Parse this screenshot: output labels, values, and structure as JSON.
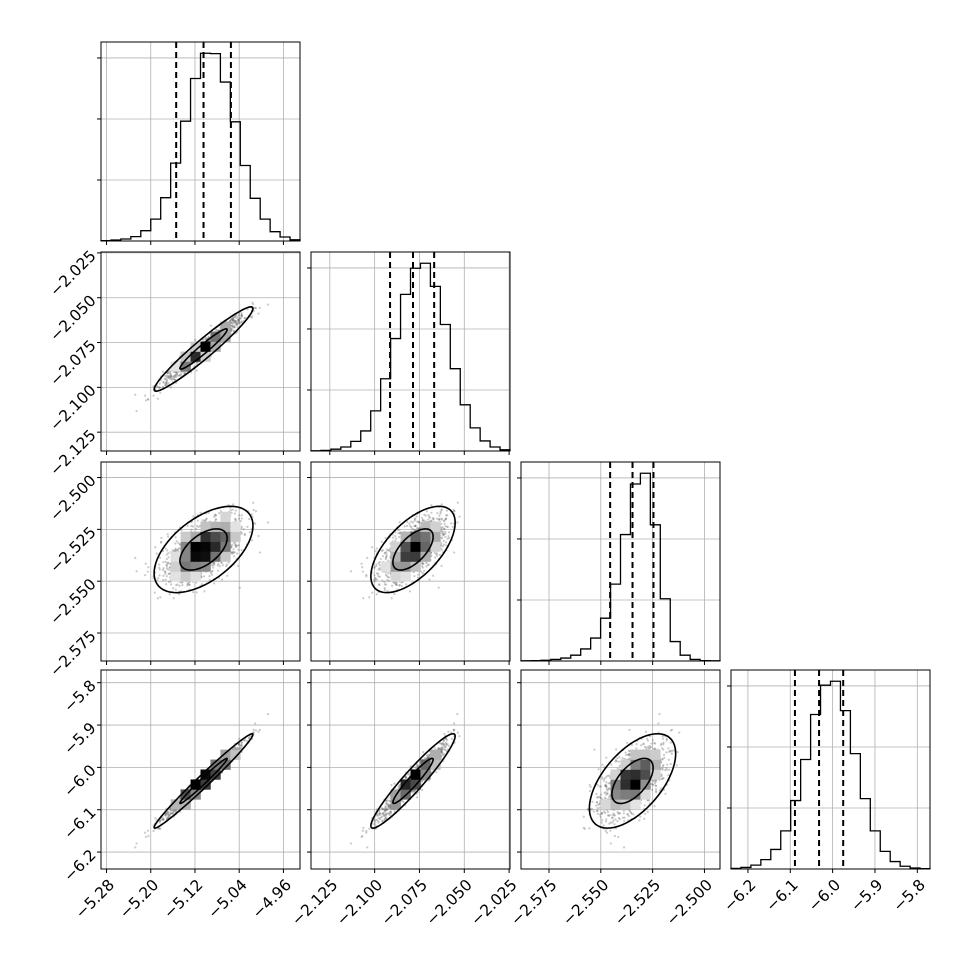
{
  "chart_data": {
    "type": "corner",
    "title": "",
    "parameters": [
      {
        "range": [
          -5.29,
          -4.93
        ],
        "ticks": [
          -5.28,
          -5.2,
          -5.12,
          -5.04,
          -4.96
        ],
        "tick_labels": [
          "−5.28",
          "−5.20",
          "−5.12",
          "−5.04",
          "−4.96"
        ]
      },
      {
        "range": [
          -2.1355,
          -2.0245
        ],
        "ticks": [
          -2.125,
          -2.1,
          -2.075,
          -2.05,
          -2.025
        ],
        "tick_labels": [
          "−2.125",
          "−2.100",
          "−2.075",
          "−2.050",
          "−2.025"
        ]
      },
      {
        "range": [
          -2.5885,
          -2.4925
        ],
        "ticks": [
          -2.575,
          -2.55,
          -2.525,
          -2.5
        ],
        "tick_labels": [
          "−2.575",
          "−2.550",
          "−2.525",
          "−2.500"
        ]
      },
      {
        "range": [
          -6.24,
          -5.77
        ],
        "ticks": [
          -6.2,
          -6.1,
          -6.0,
          -5.9,
          -5.8
        ],
        "tick_labels": [
          "−6.2",
          "−6.1",
          "−6.0",
          "−5.9",
          "−5.8"
        ]
      }
    ],
    "histograms": [
      {
        "bins": 20,
        "counts": [
          2,
          5,
          10,
          22,
          52,
          110,
          218,
          392,
          603,
          818,
          945,
          943,
          800,
          600,
          380,
          215,
          110,
          47,
          20,
          6
        ],
        "quantiles": [
          -5.154,
          -5.1045,
          -5.055
        ]
      },
      {
        "bins": 20,
        "counts": [
          1,
          3,
          9,
          20,
          48,
          100,
          200,
          360,
          560,
          780,
          910,
          935,
          820,
          630,
          410,
          230,
          115,
          50,
          20,
          6
        ],
        "quantiles": [
          -2.0914,
          -2.0786,
          -2.0668
        ]
      },
      {
        "bins": 20,
        "counts": [
          1,
          2,
          4,
          8,
          15,
          30,
          62,
          118,
          220,
          395,
          650,
          910,
          965,
          700,
          320,
          100,
          30,
          8,
          2,
          1
        ],
        "quantiles": [
          -2.5455,
          -2.5347,
          -2.5246
        ]
      },
      {
        "bins": 20,
        "counts": [
          3,
          8,
          20,
          48,
          100,
          195,
          350,
          560,
          790,
          940,
          960,
          810,
          590,
          360,
          195,
          90,
          38,
          14,
          5,
          2
        ],
        "quantiles": [
          -6.089,
          -6.032,
          -5.975
        ]
      }
    ],
    "correlations": [
      [
        1.0,
        0.96,
        0.55,
        0.985
      ],
      [
        0.96,
        1.0,
        0.62,
        0.95
      ],
      [
        0.55,
        0.62,
        1.0,
        0.58
      ],
      [
        0.985,
        0.95,
        0.58,
        1.0
      ]
    ],
    "means": [
      -5.1045,
      -2.0786,
      -2.5347,
      -6.032
    ],
    "sds": [
      0.0365,
      0.0096,
      0.0085,
      0.0455
    ],
    "grid": true
  }
}
